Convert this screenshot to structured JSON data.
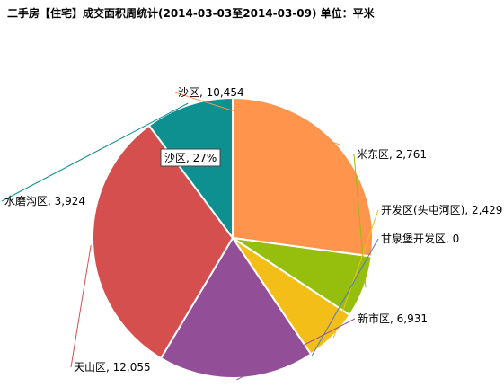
{
  "chart_data": {
    "type": "pie",
    "title": "二手房【住宅】成交面积周统计(2014-03-03至2014-03-09) 单位：平米",
    "slices": [
      {
        "name": "沙区",
        "value": 10454,
        "value_label": "10,454",
        "color": "#FF944D"
      },
      {
        "name": "米东区",
        "value": 2761,
        "value_label": "2,761",
        "color": "#96BE0C"
      },
      {
        "name": "开发区(头屯河区)",
        "value": 2429,
        "value_label": "2,429",
        "color": "#F4BE18"
      },
      {
        "name": "甘泉堡开发区",
        "value": 0,
        "value_label": "0",
        "color": "#4A7FC0"
      },
      {
        "name": "新市区",
        "value": 6931,
        "value_label": "6,931",
        "color": "#924F97"
      },
      {
        "name": "天山区",
        "value": 12055,
        "value_label": "12,055",
        "color": "#D54F4E"
      },
      {
        "name": "水磨沟区",
        "value": 3924,
        "value_label": "3,924",
        "color": "#0F9090"
      }
    ],
    "tooltip": {
      "text": "沙区, 27%"
    }
  }
}
